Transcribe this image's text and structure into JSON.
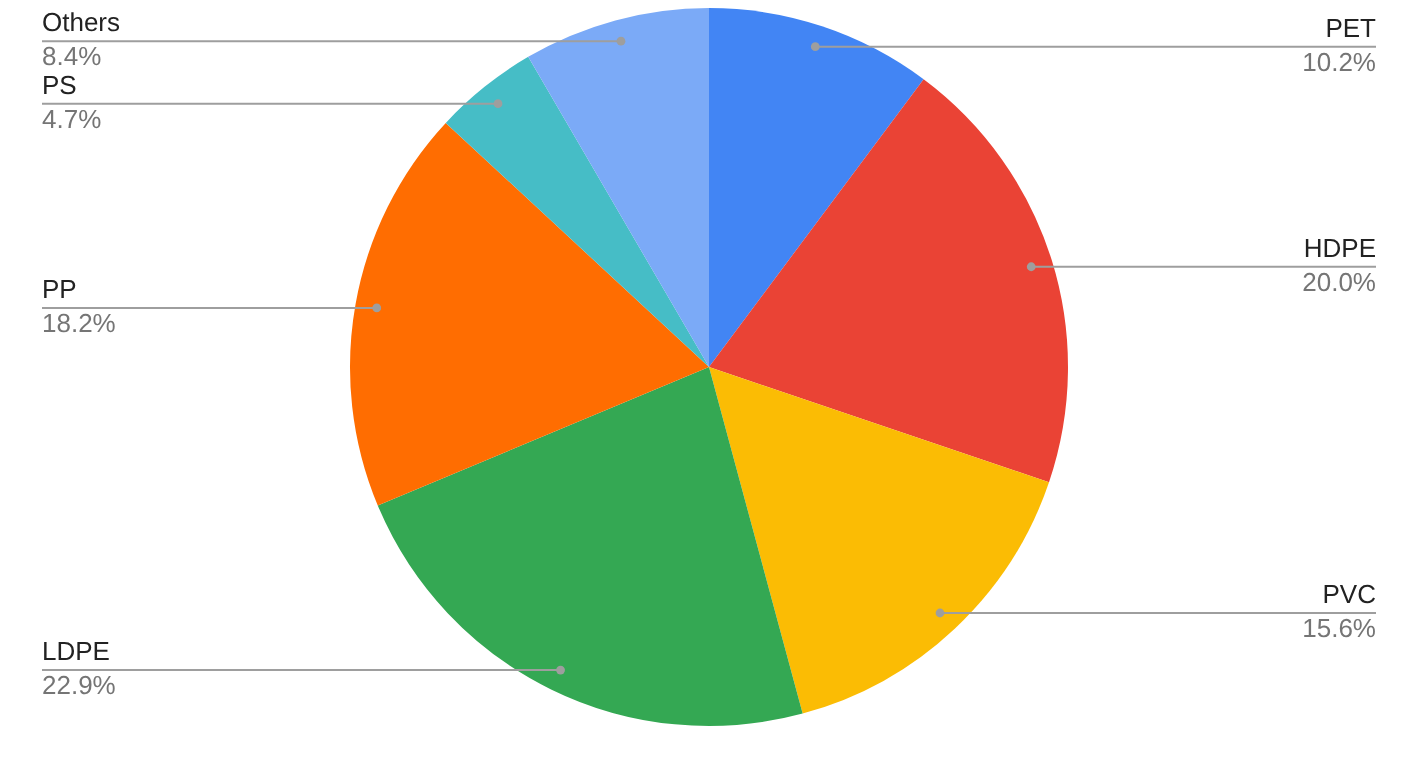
{
  "chart_data": {
    "type": "pie",
    "categories": [
      "PET",
      "HDPE",
      "PVC",
      "LDPE",
      "PP",
      "PS",
      "Others"
    ],
    "values": [
      10.2,
      20.0,
      15.6,
      22.9,
      18.2,
      4.7,
      8.4
    ],
    "colors": [
      "#4285f4",
      "#ea4335",
      "#fbbc04",
      "#34a853",
      "#ff6d01",
      "#46bdc6",
      "#7baaf7"
    ],
    "value_labels": [
      "10.2%",
      "20.0%",
      "15.6%",
      "22.9%",
      "18.2%",
      "4.7%",
      "8.4%"
    ],
    "legend": false
  }
}
